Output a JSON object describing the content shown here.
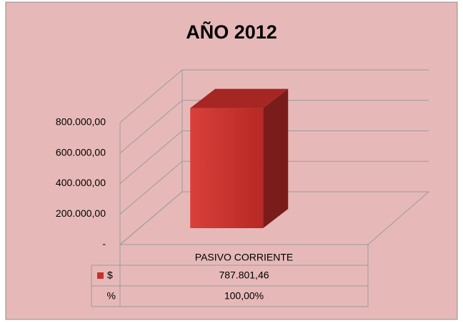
{
  "chart_data": {
    "type": "bar3d",
    "title": "AÑO 2012",
    "categories": [
      "PASIVO CORRIENTE"
    ],
    "series": [
      {
        "name": "$",
        "color": "#c8302c",
        "values": [
          787801.46
        ],
        "value_labels": [
          "787.801,46"
        ]
      },
      {
        "name": "%",
        "values": [
          100
        ],
        "value_labels": [
          "100,00%"
        ]
      }
    ],
    "ylim": [
      0,
      800000
    ],
    "yticks": [
      {
        "value": 0,
        "label": "-"
      },
      {
        "value": 200000,
        "label": "200.000,00"
      },
      {
        "value": 400000,
        "label": "400.000,00"
      },
      {
        "value": 600000,
        "label": "600.000,00"
      },
      {
        "value": 800000,
        "label": "800.000,00"
      }
    ],
    "grid": true
  }
}
